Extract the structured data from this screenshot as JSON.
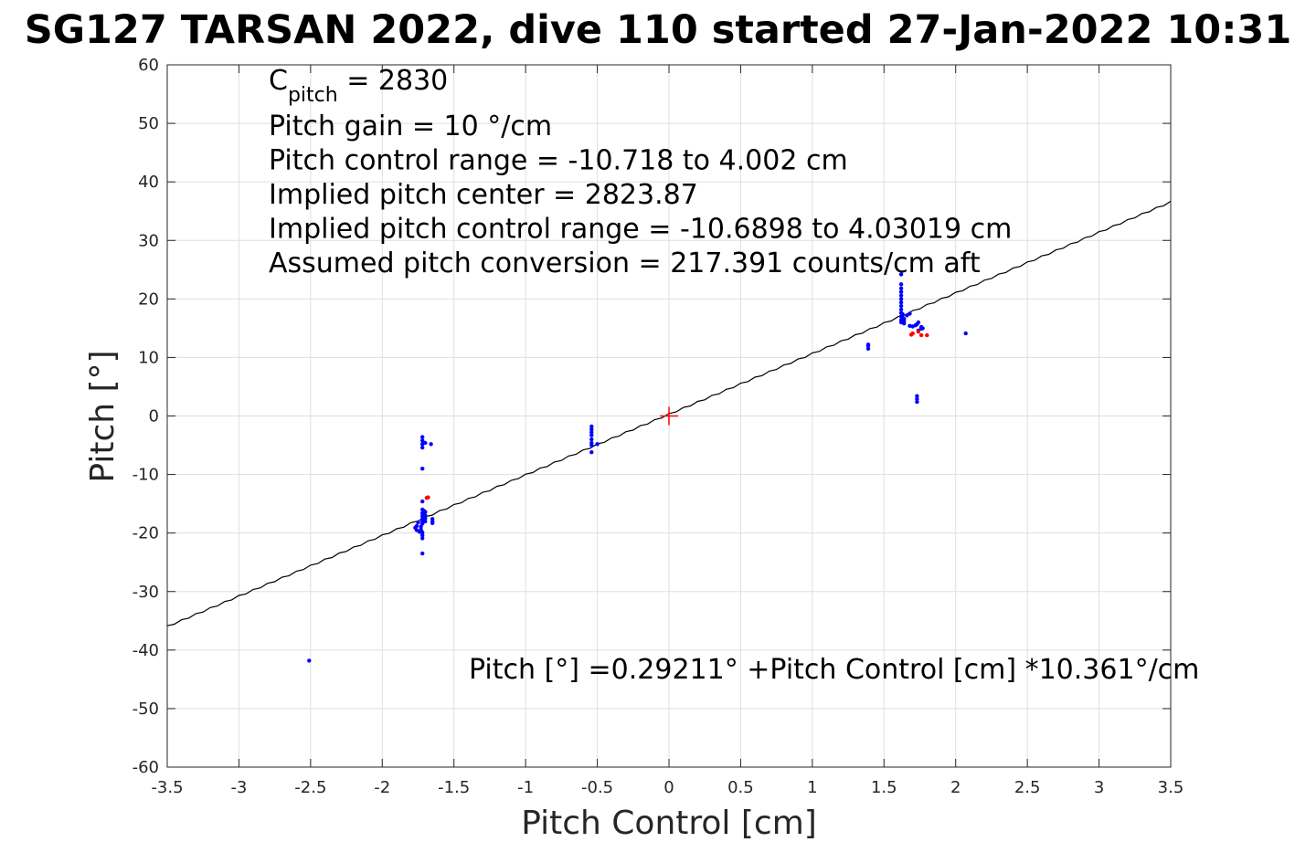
{
  "chart_data": {
    "type": "scatter",
    "title": "SG127 TARSAN 2022, dive 110 started 27-Jan-2022 10:31",
    "xlabel": "Pitch Control [cm]",
    "ylabel": "Pitch [°]",
    "xlim": [
      -3.5,
      3.5
    ],
    "ylim": [
      -60,
      60
    ],
    "xticks": [
      -3.5,
      -3,
      -2.5,
      -2,
      -1.5,
      -1,
      -0.5,
      0,
      0.5,
      1,
      1.5,
      2,
      2.5,
      3,
      3.5
    ],
    "xtick_labels": [
      "-3.5",
      "-3",
      "-2.5",
      "-2",
      "-1.5",
      "-1",
      "-0.5",
      "0",
      "0.5",
      "1",
      "1.5",
      "2",
      "2.5",
      "3",
      "3.5"
    ],
    "yticks": [
      -60,
      -50,
      -40,
      -30,
      -20,
      -10,
      0,
      10,
      20,
      30,
      40,
      50,
      60
    ],
    "ytick_labels": [
      "-60",
      "-50",
      "-40",
      "-30",
      "-20",
      "-10",
      "0",
      "10",
      "20",
      "30",
      "40",
      "50",
      "60"
    ],
    "grid": true,
    "annotation_lines": [
      "Pitch gain = 10 °/cm",
      "Pitch control range = -10.718 to 4.002 cm",
      "Implied pitch center = 2823.87",
      "Implied pitch control range = -10.6898 to 4.03019 cm",
      "Assumed pitch conversion = 217.391 counts/cm aft"
    ],
    "cpitch": {
      "symbol": "C",
      "subscript": "pitch",
      "value": " = 2830"
    },
    "equation": "Pitch [°] =0.29211° +Pitch Control [cm] *10.361°/cm",
    "fit_line": {
      "intercept": 0.29211,
      "slope": 10.361,
      "color": "#000000"
    },
    "center_marker": {
      "x": 0,
      "y": 0,
      "color": "#ff0000"
    },
    "series": [
      {
        "color": "#0000ff",
        "points": [
          [
            -2.51,
            -41.8
          ],
          [
            -1.72,
            -3.6
          ],
          [
            -1.72,
            -4.2
          ],
          [
            -1.72,
            -4.8
          ],
          [
            -1.72,
            -5.4
          ],
          [
            -1.7,
            -4.6
          ],
          [
            -1.66,
            -4.8
          ],
          [
            -1.72,
            -9.0
          ],
          [
            -1.72,
            -14.6
          ],
          [
            -1.72,
            -16.0
          ],
          [
            -1.72,
            -16.6
          ],
          [
            -1.72,
            -17.1
          ],
          [
            -1.72,
            -17.6
          ],
          [
            -1.72,
            -18.0
          ],
          [
            -1.72,
            -18.4
          ],
          [
            -1.73,
            -18.9
          ],
          [
            -1.73,
            -19.4
          ],
          [
            -1.72,
            -19.9
          ],
          [
            -1.72,
            -20.4
          ],
          [
            -1.72,
            -20.9
          ],
          [
            -1.75,
            -18.2
          ],
          [
            -1.76,
            -18.8
          ],
          [
            -1.77,
            -19.1
          ],
          [
            -1.76,
            -19.5
          ],
          [
            -1.74,
            -19.8
          ],
          [
            -1.7,
            -16.4
          ],
          [
            -1.7,
            -17.0
          ],
          [
            -1.7,
            -17.5
          ],
          [
            -1.7,
            -18.0
          ],
          [
            -1.71,
            -16.2
          ],
          [
            -1.65,
            -17.6
          ],
          [
            -1.65,
            -18.0
          ],
          [
            -1.65,
            -18.3
          ],
          [
            -1.72,
            -23.5
          ],
          [
            -0.54,
            -1.8
          ],
          [
            -0.54,
            -2.3
          ],
          [
            -0.54,
            -2.8
          ],
          [
            -0.54,
            -3.3
          ],
          [
            -0.54,
            -4.0
          ],
          [
            -0.54,
            -4.6
          ],
          [
            -0.54,
            -5.0
          ],
          [
            -0.5,
            -4.8
          ],
          [
            -0.54,
            -6.2
          ],
          [
            1.39,
            11.5
          ],
          [
            1.39,
            12.0
          ],
          [
            1.39,
            12.2
          ],
          [
            1.62,
            24.2
          ],
          [
            1.62,
            22.5
          ],
          [
            1.62,
            21.8
          ],
          [
            1.62,
            21.2
          ],
          [
            1.62,
            20.6
          ],
          [
            1.62,
            20.0
          ],
          [
            1.62,
            19.4
          ],
          [
            1.62,
            18.8
          ],
          [
            1.62,
            18.2
          ],
          [
            1.62,
            17.6
          ],
          [
            1.62,
            17.0
          ],
          [
            1.62,
            16.4
          ],
          [
            1.62,
            16.0
          ],
          [
            1.63,
            16.8
          ],
          [
            1.63,
            17.4
          ],
          [
            1.64,
            15.8
          ],
          [
            1.64,
            16.2
          ],
          [
            1.64,
            16.6
          ],
          [
            1.66,
            17.2
          ],
          [
            1.68,
            17.5
          ],
          [
            1.68,
            15.4
          ],
          [
            1.7,
            15.3
          ],
          [
            1.72,
            15.5
          ],
          [
            1.73,
            15.7
          ],
          [
            1.74,
            16.0
          ],
          [
            1.74,
            14.6
          ],
          [
            1.76,
            15.2
          ],
          [
            1.76,
            14.9
          ],
          [
            1.77,
            15.0
          ],
          [
            1.73,
            3.4
          ],
          [
            1.73,
            2.9
          ],
          [
            1.73,
            2.4
          ],
          [
            2.07,
            14.1
          ]
        ]
      },
      {
        "color": "#ff0000",
        "points": [
          [
            -1.69,
            -14.0
          ],
          [
            -1.68,
            -13.9
          ],
          [
            1.69,
            13.9
          ],
          [
            1.7,
            14.1
          ],
          [
            1.74,
            14.4
          ],
          [
            1.76,
            13.8
          ],
          [
            1.8,
            13.8
          ]
        ]
      }
    ]
  }
}
